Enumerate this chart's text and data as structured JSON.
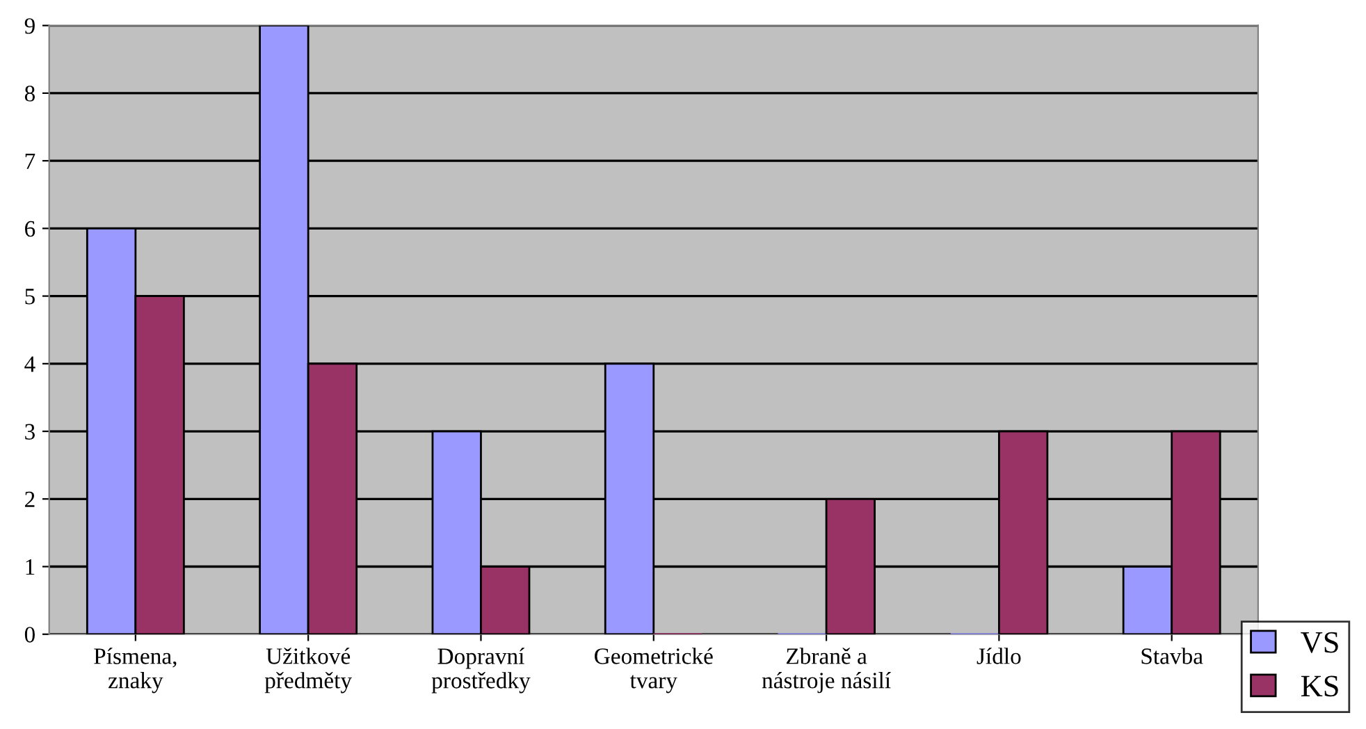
{
  "chart_data": {
    "type": "bar",
    "categories": [
      "Písmena,\nznaky",
      "Užitkové\npředměty",
      "Dopravní\nprostředky",
      "Geometrické\ntvary",
      "Zbraně a\nnástroje násilí",
      "Jídlo",
      "Stavba"
    ],
    "series": [
      {
        "name": "VS",
        "color": "#9999ff",
        "values": [
          6,
          9,
          3,
          4,
          0,
          0,
          1
        ]
      },
      {
        "name": "KS",
        "color": "#993366",
        "values": [
          5,
          4,
          1,
          0,
          2,
          3,
          3
        ]
      }
    ],
    "ylim": [
      0,
      9
    ],
    "yticks": [
      0,
      1,
      2,
      3,
      4,
      5,
      6,
      7,
      8,
      9
    ],
    "grid": "y",
    "legend": "bottom right"
  }
}
